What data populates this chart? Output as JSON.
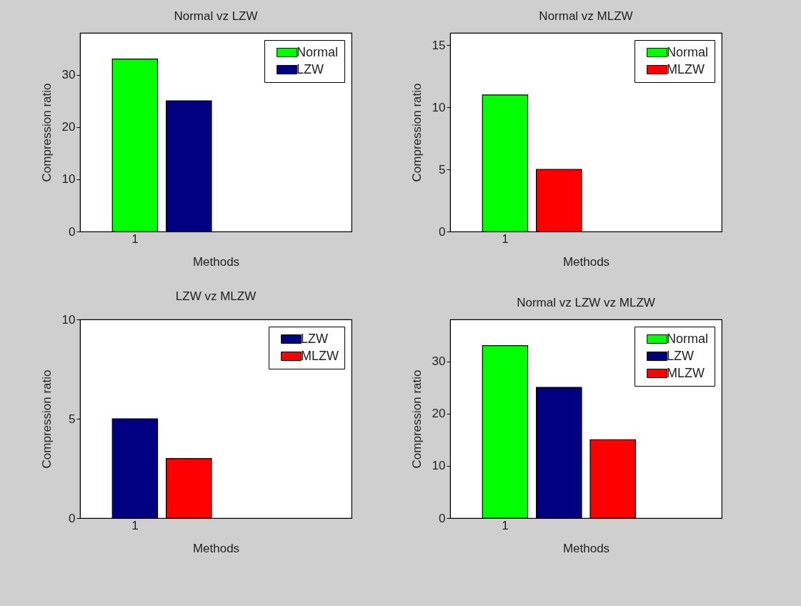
{
  "chart_data": [
    {
      "type": "bar",
      "title": "Normal vz LZW",
      "xlabel": "Methods",
      "ylabel": "Compression ratio",
      "categories": [
        "1",
        null,
        null,
        null
      ],
      "ylim": [
        0,
        38
      ],
      "yticks": [
        0,
        10,
        20,
        30
      ],
      "legend": "top right",
      "series": [
        {
          "name": "Normal",
          "color": "#00ff00",
          "values": [
            33,
            null,
            null,
            null
          ]
        },
        {
          "name": "LZW",
          "color": "#000080",
          "values": [
            null,
            25,
            null,
            null
          ]
        }
      ]
    },
    {
      "type": "bar",
      "title": "Normal vz MLZW",
      "xlabel": "Methods",
      "ylabel": "Compression ratio",
      "categories": [
        "1",
        null,
        null,
        null
      ],
      "ylim": [
        0,
        16
      ],
      "yticks": [
        0,
        5,
        10,
        15
      ],
      "legend": "top right",
      "series": [
        {
          "name": "Normal",
          "color": "#00ff00",
          "values": [
            11,
            null,
            null,
            null
          ]
        },
        {
          "name": "MLZW",
          "color": "#ff0000",
          "values": [
            null,
            5,
            null,
            null
          ]
        }
      ]
    },
    {
      "type": "bar",
      "title": "LZW vz MLZW",
      "xlabel": "Methods",
      "ylabel": "Compression ratio",
      "categories": [
        "1",
        null,
        null,
        null
      ],
      "ylim": [
        0,
        10
      ],
      "yticks": [
        0,
        5,
        10
      ],
      "legend": "top right",
      "series": [
        {
          "name": "LZW",
          "color": "#000080",
          "values": [
            5,
            null,
            null,
            null
          ]
        },
        {
          "name": "MLZW",
          "color": "#ff0000",
          "values": [
            null,
            3,
            null,
            null
          ]
        }
      ]
    },
    {
      "type": "bar",
      "title": "Normal vz LZW vz MLZW",
      "xlabel": "Methods",
      "ylabel": "Compression ratio",
      "categories": [
        "1",
        null,
        null,
        null
      ],
      "ylim": [
        0,
        38
      ],
      "yticks": [
        0,
        10,
        20,
        30
      ],
      "legend": "top right",
      "series": [
        {
          "name": "Normal",
          "color": "#00ff00",
          "values": [
            33,
            null,
            null,
            null
          ]
        },
        {
          "name": "LZW",
          "color": "#000080",
          "values": [
            null,
            25,
            null,
            null
          ]
        },
        {
          "name": "MLZW",
          "color": "#ff0000",
          "values": [
            null,
            null,
            15,
            null
          ]
        }
      ]
    }
  ]
}
